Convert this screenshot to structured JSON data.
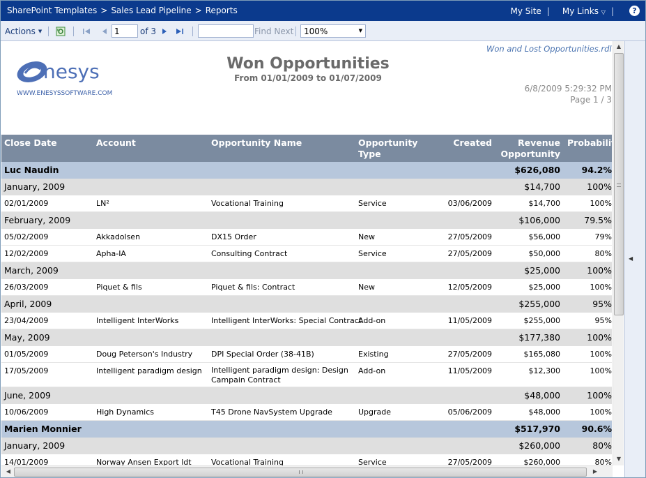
{
  "breadcrumb": [
    "SharePoint Templates",
    ">",
    "Sales Lead Pipeline",
    ">",
    "Reports"
  ],
  "top_links": {
    "my_site": "My Site",
    "sep": "|",
    "my_links": "My Links",
    "help": "?"
  },
  "toolbar": {
    "actions": "Actions",
    "page_value": "1",
    "page_of": "of 3",
    "find_placeholder": "",
    "find_next": "Find Next",
    "zoom": "100%"
  },
  "report": {
    "rdl_link": "Won and Lost Opportunities.rdl",
    "title": "Won Opportunities",
    "subtitle": "From 01/01/2009 to 01/07/2009",
    "timestamp": "6/8/2009 5:29:32 PM",
    "page": "Page 1 / 3",
    "logo_text": "nesys",
    "logo_url": "WWW.ENESYSSOFTWARE.COM"
  },
  "columns": {
    "close_date": "Close Date",
    "account": "Account",
    "opportunity_name": "Opportunity Name",
    "opportunity_type": "Opportunity\nType",
    "created": "Created",
    "revenue": "Revenue\nOpportunity",
    "probability": "Probability"
  },
  "rows": [
    {
      "kind": "person",
      "name": "Luc Naudin",
      "revenue": "$626,080",
      "prob": "94.2%"
    },
    {
      "kind": "month",
      "name": "January, 2009",
      "revenue": "$14,700",
      "prob": "100%"
    },
    {
      "kind": "detail",
      "date": "02/01/2009",
      "account": "LN²",
      "opp": "Vocational Training",
      "type": "Service",
      "created": "03/06/2009",
      "revenue": "$14,700",
      "prob": "100%"
    },
    {
      "kind": "month",
      "name": "February, 2009",
      "revenue": "$106,000",
      "prob": "79.5%"
    },
    {
      "kind": "detail",
      "date": "05/02/2009",
      "account": "Akkadolsen",
      "opp": "DX15 Order",
      "type": "New",
      "created": "27/05/2009",
      "revenue": "$56,000",
      "prob": "79%"
    },
    {
      "kind": "detail",
      "date": "12/02/2009",
      "account": "Apha-IA",
      "opp": "Consulting Contract",
      "type": "Service",
      "created": "27/05/2009",
      "revenue": "$50,000",
      "prob": "80%"
    },
    {
      "kind": "month",
      "name": "March, 2009",
      "revenue": "$25,000",
      "prob": "100%"
    },
    {
      "kind": "detail",
      "date": "26/03/2009",
      "account": "Piquet & fils",
      "opp": "Piquet & fils: Contract",
      "type": "New",
      "created": "12/05/2009",
      "revenue": "$25,000",
      "prob": "100%"
    },
    {
      "kind": "month",
      "name": "April, 2009",
      "revenue": "$255,000",
      "prob": "95%"
    },
    {
      "kind": "detail",
      "date": "23/04/2009",
      "account": "Intelligent InterWorks",
      "opp": "Intelligent InterWorks: Special Contract",
      "type": "Add-on",
      "created": "11/05/2009",
      "revenue": "$255,000",
      "prob": "95%"
    },
    {
      "kind": "month",
      "name": "May, 2009",
      "revenue": "$177,380",
      "prob": "100%"
    },
    {
      "kind": "detail",
      "date": "01/05/2009",
      "account": "Doug Peterson's Industry",
      "opp": "DPI Special Order (38-41B)",
      "type": "Existing",
      "created": "27/05/2009",
      "revenue": "$165,080",
      "prob": "100%"
    },
    {
      "kind": "detail",
      "tall": true,
      "date": "17/05/2009",
      "account": "Intelligent paradigm design",
      "opp": "Intelligent paradigm design: Design\nCampain Contract",
      "type": "Add-on",
      "created": "11/05/2009",
      "revenue": "$12,300",
      "prob": "100%"
    },
    {
      "kind": "month",
      "name": "June, 2009",
      "revenue": "$48,000",
      "prob": "100%"
    },
    {
      "kind": "detail",
      "date": "10/06/2009",
      "account": "High Dynamics",
      "opp": "T45 Drone NavSystem Upgrade",
      "type": "Upgrade",
      "created": "05/06/2009",
      "revenue": "$48,000",
      "prob": "100%"
    },
    {
      "kind": "person",
      "name": "Marien Monnier",
      "revenue": "$517,970",
      "prob": "90.6%"
    },
    {
      "kind": "month",
      "name": "January, 2009",
      "revenue": "$260,000",
      "prob": "80%"
    },
    {
      "kind": "detail",
      "date": "14/01/2009",
      "account": "Norway Ansen Export ldt",
      "opp": "Vocational Training",
      "type": "Service",
      "created": "27/05/2009",
      "revenue": "$260,000",
      "prob": "80%"
    }
  ]
}
